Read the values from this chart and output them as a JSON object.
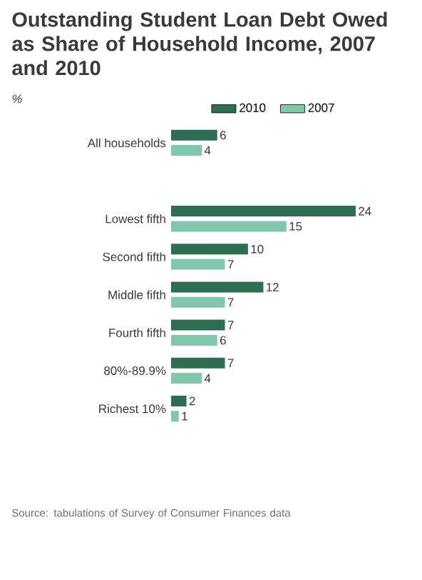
{
  "chart_data": {
    "type": "bar",
    "orientation": "horizontal",
    "title": "Outstanding Student Loan Debt Owed as Share of Household Income, 2007 and 2010",
    "subtitle": "%",
    "categories": [
      "All households",
      null,
      "Lowest fifth",
      "Second fifth",
      "Middle fifth",
      "Fourth fifth",
      "80%-89.9%",
      "Richest 10%"
    ],
    "series": [
      {
        "name": "2010",
        "color": "#2e6e52",
        "values": [
          6,
          null,
          24,
          10,
          12,
          7,
          7,
          2
        ]
      },
      {
        "name": "2007",
        "color": "#80c7ad",
        "values": [
          4,
          null,
          15,
          7,
          7,
          6,
          4,
          1
        ]
      }
    ],
    "data_labels": true,
    "legend": "top",
    "annotations": [
      "Source: tabulations of Survey of Consumer Finances data"
    ]
  }
}
